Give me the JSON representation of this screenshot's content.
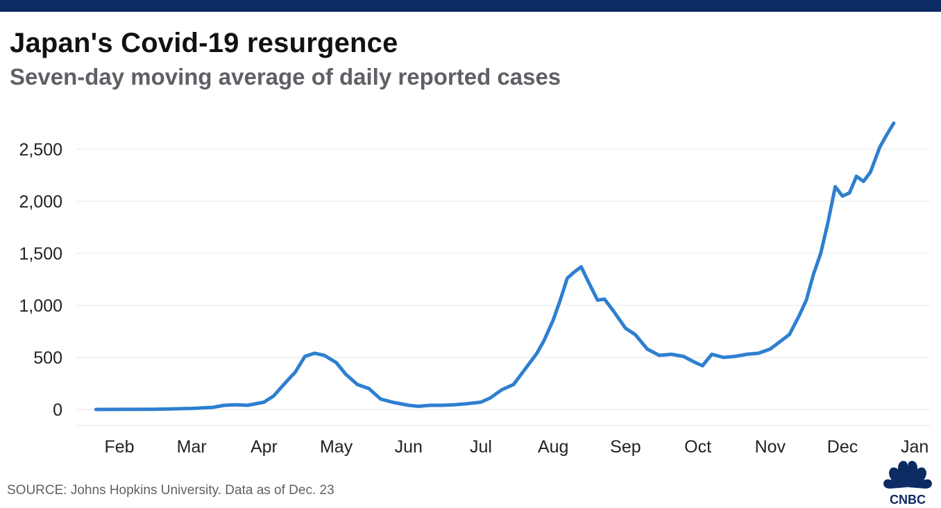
{
  "header": {
    "title": "Japan's Covid-19 resurgence",
    "subtitle": "Seven-day moving average of daily reported cases"
  },
  "footer": {
    "source": "SOURCE: Johns Hopkins University. Data as of Dec. 23"
  },
  "logo": {
    "text": "CNBC"
  },
  "colors": {
    "topbar": "#0d2b63",
    "line": "#2e7fd0",
    "grid": "#e6e6e6"
  },
  "chart_data": {
    "type": "line",
    "title": "Japan's Covid-19 resurgence",
    "subtitle": "Seven-day moving average of daily reported cases",
    "xlabel": "",
    "ylabel": "",
    "ylim": [
      0,
      2750
    ],
    "yticks": [
      {
        "value": 0,
        "label": "0"
      },
      {
        "value": 500,
        "label": "500"
      },
      {
        "value": 1000,
        "label": "1,000"
      },
      {
        "value": 1500,
        "label": "1,500"
      },
      {
        "value": 2000,
        "label": "2,000"
      },
      {
        "value": 2500,
        "label": "2,500"
      }
    ],
    "xticks": [
      {
        "month": 2,
        "label": "Feb"
      },
      {
        "month": 3,
        "label": "Mar"
      },
      {
        "month": 4,
        "label": "Apr"
      },
      {
        "month": 5,
        "label": "May"
      },
      {
        "month": 6,
        "label": "Jun"
      },
      {
        "month": 7,
        "label": "Jul"
      },
      {
        "month": 8,
        "label": "Aug"
      },
      {
        "month": 9,
        "label": "Sep"
      },
      {
        "month": 10,
        "label": "Oct"
      },
      {
        "month": 11,
        "label": "Nov"
      },
      {
        "month": 12,
        "label": "Dec"
      },
      {
        "month": 13,
        "label": "Jan"
      }
    ],
    "grid": true,
    "series": [
      {
        "points": [
          [
            "2020-01-22",
            0
          ],
          [
            "2020-02-01",
            1
          ],
          [
            "2020-02-15",
            2
          ],
          [
            "2020-03-01",
            10
          ],
          [
            "2020-03-10",
            20
          ],
          [
            "2020-03-15",
            40
          ],
          [
            "2020-03-20",
            45
          ],
          [
            "2020-03-25",
            40
          ],
          [
            "2020-04-01",
            70
          ],
          [
            "2020-04-05",
            130
          ],
          [
            "2020-04-10",
            260
          ],
          [
            "2020-04-14",
            360
          ],
          [
            "2020-04-18",
            510
          ],
          [
            "2020-04-22",
            540
          ],
          [
            "2020-04-26",
            520
          ],
          [
            "2020-05-01",
            450
          ],
          [
            "2020-05-05",
            340
          ],
          [
            "2020-05-10",
            240
          ],
          [
            "2020-05-15",
            200
          ],
          [
            "2020-05-20",
            100
          ],
          [
            "2020-05-25",
            70
          ],
          [
            "2020-06-01",
            40
          ],
          [
            "2020-06-05",
            30
          ],
          [
            "2020-06-10",
            40
          ],
          [
            "2020-06-15",
            40
          ],
          [
            "2020-06-20",
            45
          ],
          [
            "2020-06-25",
            55
          ],
          [
            "2020-07-01",
            70
          ],
          [
            "2020-07-05",
            110
          ],
          [
            "2020-07-10",
            190
          ],
          [
            "2020-07-15",
            240
          ],
          [
            "2020-07-20",
            390
          ],
          [
            "2020-07-25",
            540
          ],
          [
            "2020-07-28",
            660
          ],
          [
            "2020-08-01",
            860
          ],
          [
            "2020-08-04",
            1050
          ],
          [
            "2020-08-07",
            1260
          ],
          [
            "2020-08-10",
            1320
          ],
          [
            "2020-08-13",
            1370
          ],
          [
            "2020-08-16",
            1230
          ],
          [
            "2020-08-20",
            1050
          ],
          [
            "2020-08-23",
            1060
          ],
          [
            "2020-08-27",
            940
          ],
          [
            "2020-09-01",
            780
          ],
          [
            "2020-09-05",
            720
          ],
          [
            "2020-09-10",
            580
          ],
          [
            "2020-09-15",
            520
          ],
          [
            "2020-09-20",
            530
          ],
          [
            "2020-09-25",
            510
          ],
          [
            "2020-09-30",
            450
          ],
          [
            "2020-10-03",
            420
          ],
          [
            "2020-10-07",
            530
          ],
          [
            "2020-10-12",
            500
          ],
          [
            "2020-10-17",
            510
          ],
          [
            "2020-10-22",
            530
          ],
          [
            "2020-10-27",
            540
          ],
          [
            "2020-11-01",
            580
          ],
          [
            "2020-11-05",
            650
          ],
          [
            "2020-11-09",
            720
          ],
          [
            "2020-11-13",
            900
          ],
          [
            "2020-11-16",
            1050
          ],
          [
            "2020-11-19",
            1300
          ],
          [
            "2020-11-22",
            1500
          ],
          [
            "2020-11-25",
            1800
          ],
          [
            "2020-11-28",
            2140
          ],
          [
            "2020-12-01",
            2050
          ],
          [
            "2020-12-04",
            2080
          ],
          [
            "2020-12-07",
            2240
          ],
          [
            "2020-12-10",
            2190
          ],
          [
            "2020-12-13",
            2280
          ],
          [
            "2020-12-17",
            2520
          ],
          [
            "2020-12-20",
            2640
          ],
          [
            "2020-12-23",
            2750
          ]
        ]
      }
    ]
  }
}
